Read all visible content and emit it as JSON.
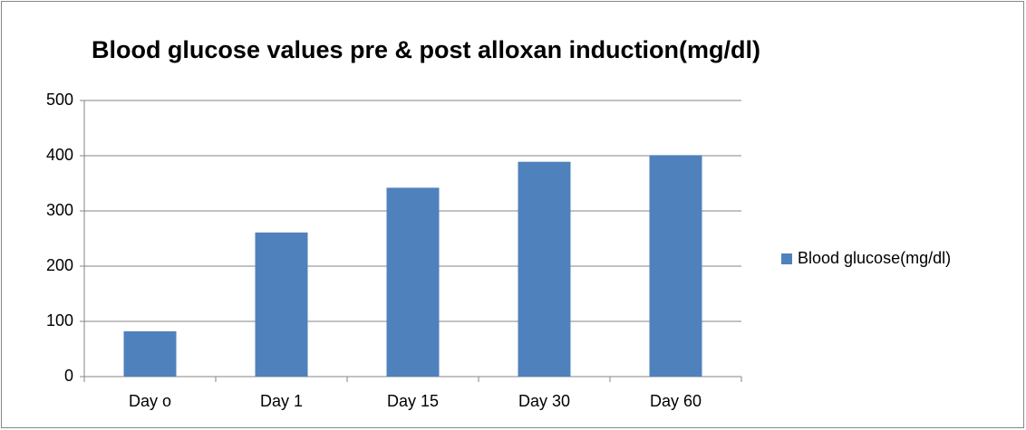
{
  "chart_data": {
    "type": "bar",
    "title": "Blood glucose values pre & post alloxan induction(mg/dl)",
    "categories": [
      "Day o",
      "Day 1",
      "Day 15",
      "Day 30",
      "Day 60"
    ],
    "series": [
      {
        "name": "Blood glucose(mg/dl)",
        "color": "#4f81bd",
        "values": [
          82,
          261,
          342,
          389,
          401
        ]
      }
    ],
    "ylim": [
      0,
      500
    ],
    "yticks": [
      0,
      100,
      200,
      300,
      400,
      500
    ],
    "grid": true,
    "legend": "right"
  }
}
